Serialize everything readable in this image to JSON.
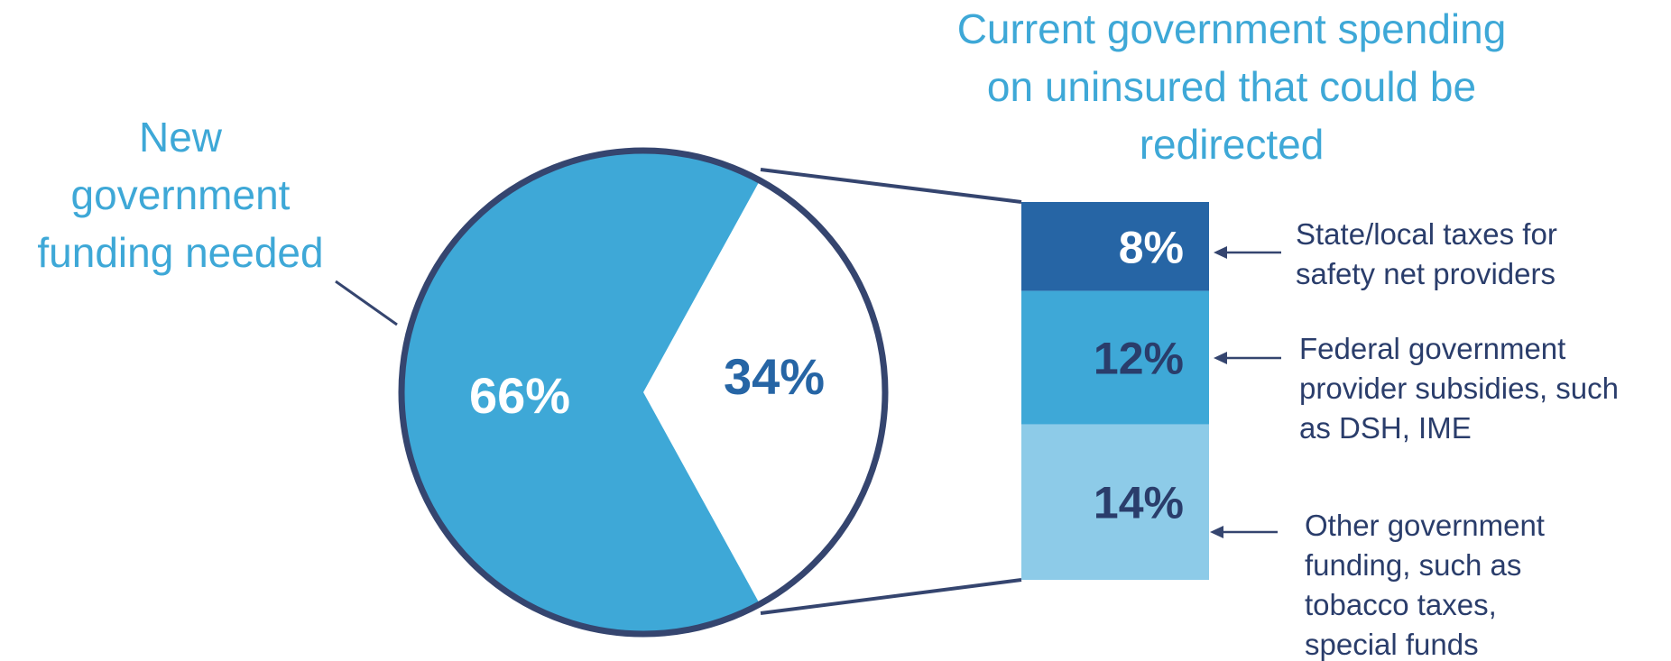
{
  "chart_data": {
    "type": "pie",
    "pie": {
      "slices": [
        {
          "id": "new",
          "value": 66,
          "label": "66%"
        },
        {
          "id": "current",
          "value": 34,
          "label": "34%"
        }
      ],
      "annotation": {
        "lines": [
          "New",
          "government",
          "funding needed"
        ]
      }
    },
    "stacked_bar": {
      "title_lines": [
        "Current government spending",
        "on uninsured that could be",
        "redirected"
      ],
      "segments": [
        {
          "value": 8,
          "label": "8%",
          "note_lines": [
            "State/local taxes for",
            "safety net providers"
          ]
        },
        {
          "value": 12,
          "label": "12%",
          "note_lines": [
            "Federal government",
            "provider subsidies, such",
            "as DSH, IME"
          ]
        },
        {
          "value": 14,
          "label": "14%",
          "note_lines": [
            "Other government",
            "funding, such as",
            "tobacco taxes,",
            "special funds"
          ]
        }
      ]
    },
    "colors": {
      "slice_new": "#3ea8d7",
      "slice_current": "#ffffff",
      "outline": "#35456f",
      "bar_top": "#2665a5",
      "bar_mid": "#3ea8d7",
      "bar_bottom": "#8dcbe8",
      "title": "#3ea8d7",
      "label_light": "#ffffff",
      "label_dark": "#2a3d6b",
      "note": "#2a3d6b"
    }
  }
}
